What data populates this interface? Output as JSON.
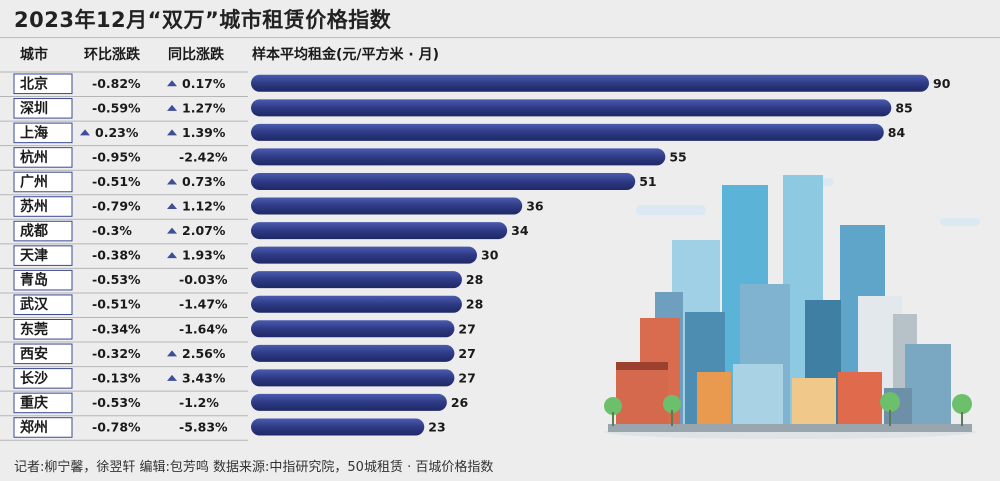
{
  "title": "2023年12月“双万”城市租赁价格指数",
  "footer": "记者:柳宁馨，徐翌轩   编辑:包芳鸣   数据来源:中指研究院，50城租赁 · 百城价格指数",
  "chart_data": {
    "type": "bar",
    "orientation": "horizontal",
    "columns": [
      "城市",
      "环比涨跌",
      "同比涨跌",
      "样本平均租金(元/平方米 · 月)"
    ],
    "categories": [
      "北京",
      "深圳",
      "上海",
      "杭州",
      "广州",
      "苏州",
      "成都",
      "天津",
      "青岛",
      "武汉",
      "东莞",
      "西安",
      "长沙",
      "重庆",
      "郑州"
    ],
    "mom": [
      "-0.82%",
      "-0.59%",
      "0.23%",
      "-0.95%",
      "-0.51%",
      "-0.79%",
      "-0.3%",
      "-0.38%",
      "-0.53%",
      "-0.51%",
      "-0.34%",
      "-0.32%",
      "-0.13%",
      "-0.53%",
      "-0.78%"
    ],
    "yoy": [
      "0.17%",
      "1.27%",
      "1.39%",
      "-2.42%",
      "0.73%",
      "1.12%",
      "2.07%",
      "1.93%",
      "-0.03%",
      "-1.47%",
      "-1.64%",
      "2.56%",
      "3.43%",
      "-1.2%",
      "-5.83%"
    ],
    "values": [
      90,
      85,
      84,
      55,
      51,
      36,
      34,
      30,
      28,
      28,
      27,
      27,
      27,
      26,
      23
    ],
    "xlim": [
      0,
      90
    ],
    "bar_color": "#2e3a84"
  }
}
